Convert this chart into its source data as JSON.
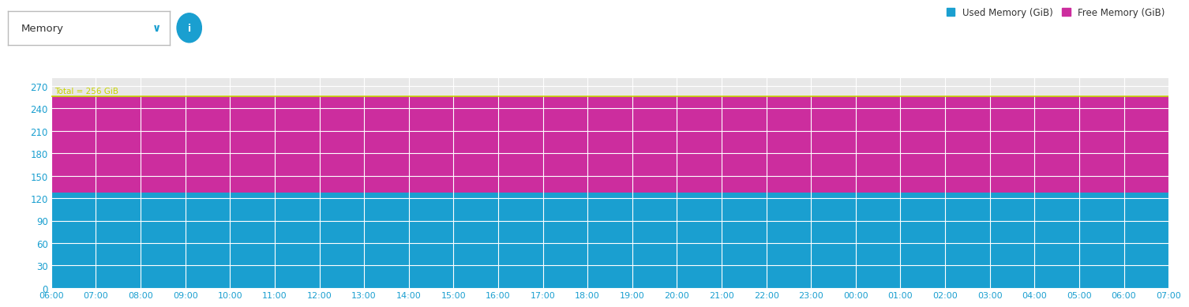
{
  "title": "Memory",
  "used_memory_color": "#1a9fd0",
  "free_memory_color": "#cc2d9e",
  "used_memory_value": 128,
  "free_memory_value": 128,
  "total_memory": 256,
  "total_label": "Total = 256 GiB",
  "total_label_color": "#c8d400",
  "ylim_max": 280,
  "yticks": [
    0,
    30,
    60,
    90,
    120,
    150,
    180,
    210,
    240,
    270
  ],
  "x_labels": [
    "06:00",
    "07:00",
    "08:00",
    "09:00",
    "10:00",
    "11:00",
    "12:00",
    "13:00",
    "14:00",
    "15:00",
    "16:00",
    "17:00",
    "18:00",
    "19:00",
    "20:00",
    "21:00",
    "22:00",
    "23:00",
    "00:00",
    "01:00",
    "02:00",
    "03:00",
    "04:00",
    "05:00",
    "06:00",
    "07:00"
  ],
  "legend_used_label": "Used Memory (GiB)",
  "legend_free_label": "Free Memory (GiB)",
  "legend_used_color": "#1a9fd0",
  "legend_free_color": "#cc2d9e",
  "background_color": "#ffffff",
  "plot_bg_color": "#e8e8e8",
  "grid_color": "#ffffff",
  "tick_label_color": "#1a9fd0",
  "dropdown_text": "Memory",
  "info_icon_color": "#1a9fd0"
}
